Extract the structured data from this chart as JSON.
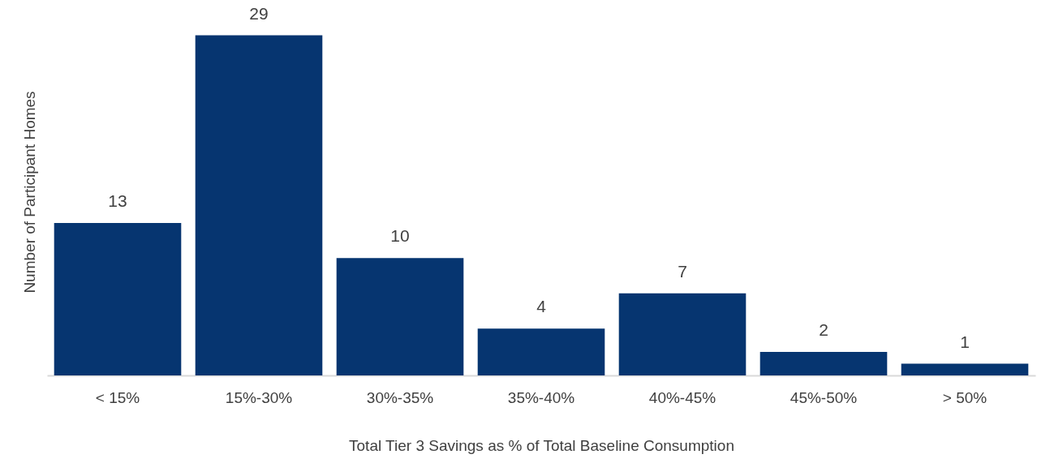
{
  "chart_data": {
    "type": "bar",
    "xlabel": "Total Tier 3 Savings as % of Total Baseline Consumption",
    "ylabel": "Number of Participant Homes",
    "categories": [
      "< 15%",
      "15%-30%",
      "30%-35%",
      "35%-40%",
      "40%-45%",
      "45%-50%",
      "> 50%"
    ],
    "values": [
      13,
      29,
      10,
      4,
      7,
      2,
      1
    ],
    "color": "#063570",
    "data_labels": true,
    "grid": false,
    "tick_labels": "x"
  }
}
